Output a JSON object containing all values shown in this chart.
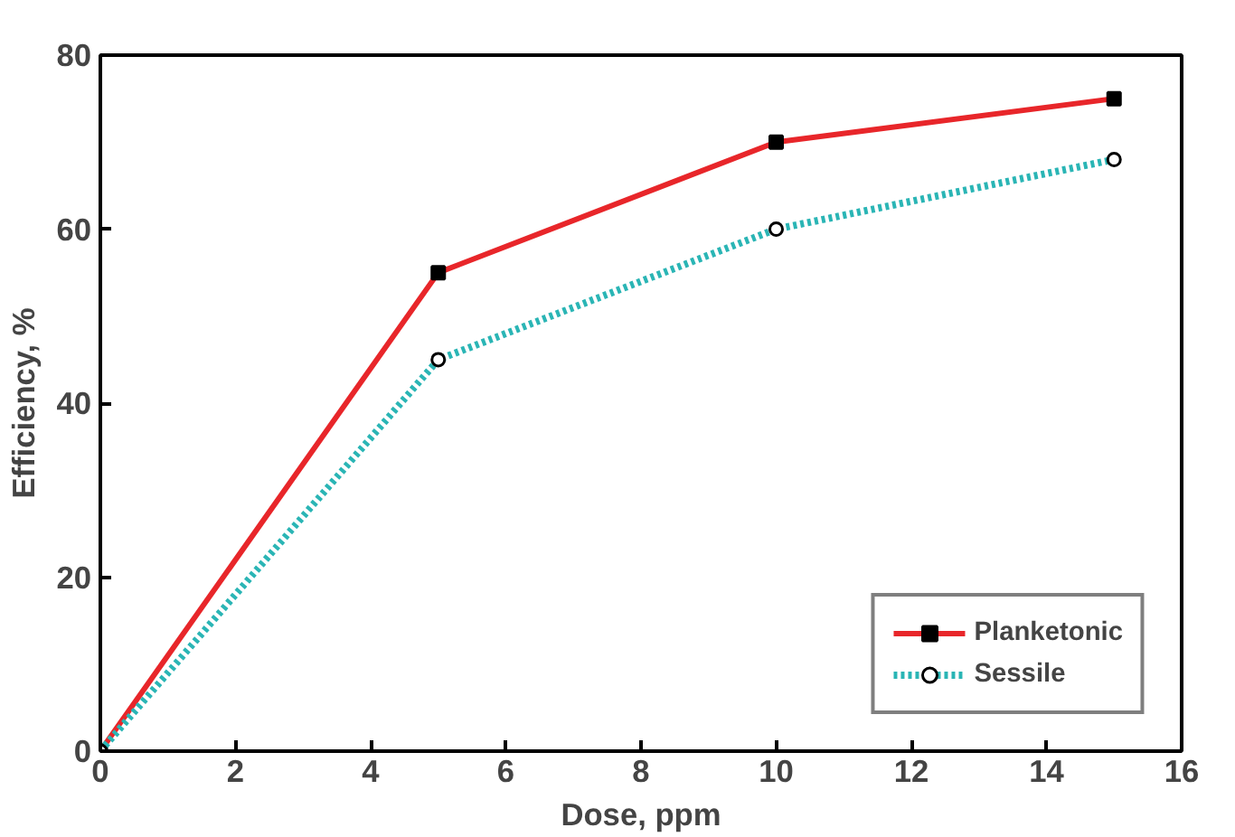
{
  "chart_data": {
    "type": "line",
    "xlabel": "Dose, ppm",
    "ylabel": "Efficiency, %",
    "x": [
      0,
      5,
      10,
      15
    ],
    "series": [
      {
        "name": "Planketonic",
        "color": "#e8262a",
        "values": [
          0,
          55,
          70,
          75
        ],
        "marker": "square",
        "line_style": "solid"
      },
      {
        "name": "Sessile",
        "color": "#2ab5b5",
        "values": [
          0,
          45,
          60,
          68
        ],
        "marker": "circle",
        "line_style": "dotted"
      }
    ],
    "xlim": [
      0,
      16
    ],
    "xticks": [
      0,
      2,
      4,
      6,
      8,
      10,
      12,
      14,
      16
    ],
    "ylim": [
      0,
      80
    ],
    "yticks": [
      0,
      20,
      40,
      60,
      80
    ],
    "grid": false,
    "legend": "bottom right"
  }
}
